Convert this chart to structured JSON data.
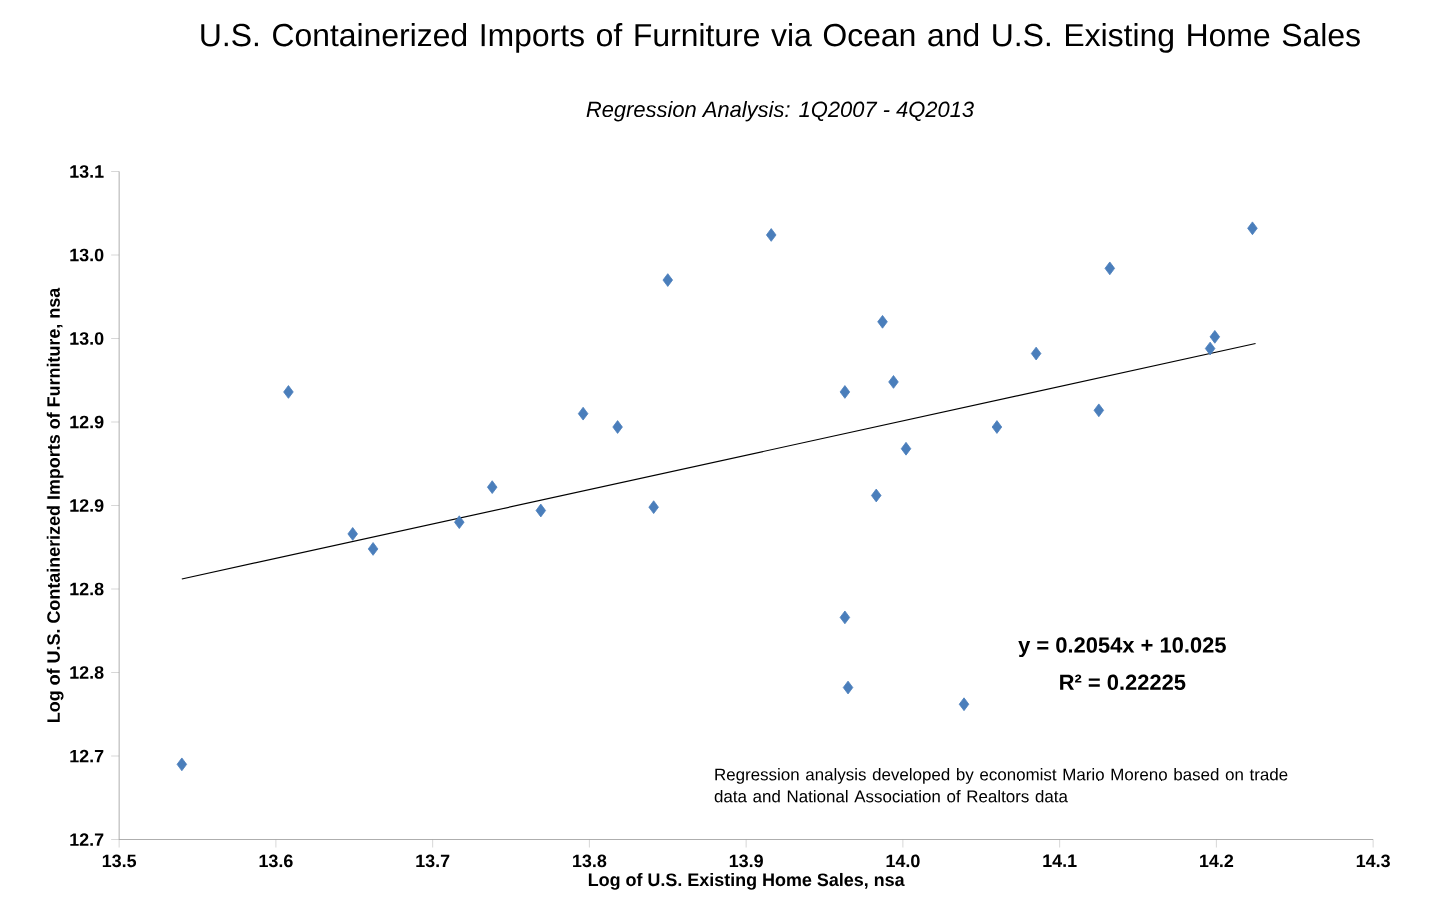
{
  "chart_data": {
    "type": "scatter",
    "title": "U.S. Containerized Imports of Furniture via Ocean and U.S. Existing Home Sales",
    "subtitle": "Regression Analysis: 1Q2007 - 4Q2013",
    "xlabel": "Log of U.S. Existing Home Sales, nsa",
    "ylabel": "Log of U.S. Containerized Imports of Furniture, nsa",
    "xlim": [
      13.5,
      14.3
    ],
    "xticks": [
      13.5,
      13.6,
      13.7,
      13.8,
      13.9,
      {
        "value": 14.0,
        "label": "14.0"
      },
      14.1,
      14.2,
      14.3
    ],
    "ylim": [
      12.65,
      13.05
    ],
    "yticks": [
      {
        "value": 12.65,
        "label": "12.7"
      },
      {
        "value": 12.7,
        "label": "12.7"
      },
      {
        "value": 12.75,
        "label": "12.8"
      },
      {
        "value": 12.8,
        "label": "12.8"
      },
      {
        "value": 12.85,
        "label": "12.9"
      },
      {
        "value": 12.9,
        "label": "12.9"
      },
      {
        "value": 12.95,
        "label": "13.0"
      },
      {
        "value": 13.0,
        "label": "13.0"
      },
      {
        "value": 13.05,
        "label": "13.1"
      }
    ],
    "series": [
      {
        "color": "#4a7ebb",
        "marker": "diamond",
        "x": [
          13.54,
          13.608,
          13.649,
          13.662,
          13.717,
          13.738,
          13.769,
          13.796,
          13.818,
          13.841,
          13.85,
          13.916,
          14.223,
          14.132,
          13.987,
          14.085,
          14.199,
          14.196,
          13.963,
          13.994,
          14.125,
          14.06,
          14.002,
          13.983,
          13.963,
          13.965,
          14.039
        ],
        "values": [
          12.695,
          12.918,
          12.833,
          12.824,
          12.84,
          12.861,
          12.847,
          12.905,
          12.897,
          12.849,
          12.985,
          13.012,
          13.016,
          12.992,
          12.96,
          12.941,
          12.951,
          12.944,
          12.918,
          12.924,
          12.907,
          12.897,
          12.884,
          12.856,
          12.783,
          12.741,
          12.731
        ]
      },
      {
        "type": "line",
        "color": "#000000",
        "marker": "none",
        "x": [
          13.54,
          14.225
        ],
        "values": [
          12.806,
          12.947
        ]
      }
    ],
    "annotations": [
      "y = 0.2054x + 10.025",
      "R² = 0.22225",
      "Regression analysis developed by economist Mario Moreno based on trade data and National Association of Realtors data"
    ]
  }
}
